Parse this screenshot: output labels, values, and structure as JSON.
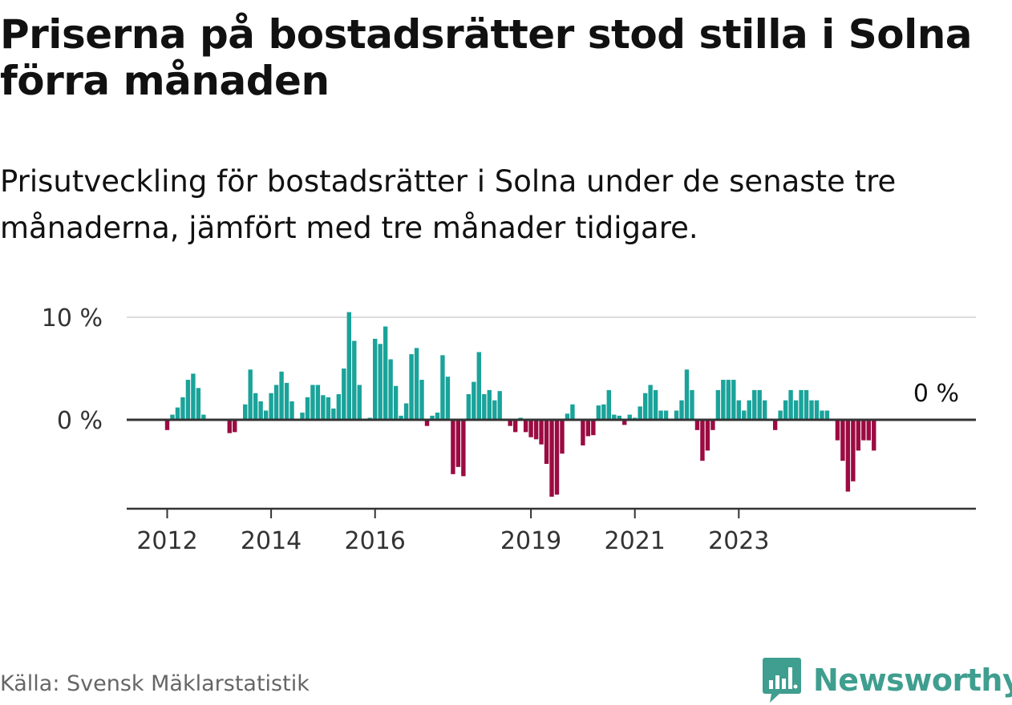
{
  "title": "Priserna på bostadsrätter stod stilla i Solna förra månaden",
  "subtitle": "Prisutveckling för bostadsrätter i Solna under de senaste tre månaderna, jämfört med tre månader tidigare.",
  "source": "Källa: Svensk Mäklarstatistik",
  "brand": {
    "name": "Newsworthy",
    "logo_icon": "bar-chart-speech-bubble-icon",
    "color": "#3f9e8f"
  },
  "colors": {
    "positive": "#1aa39a",
    "negative": "#9b0b42",
    "gridline": "#dddddd",
    "axis": "#333333"
  },
  "chart_data": {
    "type": "bar",
    "title": "",
    "xlabel": "",
    "ylabel": "",
    "ylim": [
      -8.5,
      10
    ],
    "y_ticks": [
      {
        "value": 0,
        "label": "0 %"
      },
      {
        "value": 10,
        "label": "10 %"
      }
    ],
    "x_ticks": [
      {
        "index": 0,
        "label": "2012"
      },
      {
        "index": 20,
        "label": "2014"
      },
      {
        "index": 40,
        "label": "2016"
      },
      {
        "index": 70,
        "label": "2019"
      },
      {
        "index": 90,
        "label": "2021"
      },
      {
        "index": 110,
        "label": "2023"
      }
    ],
    "last_value_label": "0 %",
    "grid": true,
    "legend": "none",
    "values": [
      -1.0,
      0.5,
      1.2,
      2.2,
      3.9,
      4.5,
      3.1,
      0.5,
      0.0,
      0.0,
      0.0,
      0.0,
      -1.3,
      -1.2,
      0.0,
      1.5,
      4.9,
      2.6,
      1.8,
      0.9,
      2.6,
      3.4,
      4.7,
      3.6,
      1.8,
      0.0,
      0.7,
      2.2,
      3.4,
      3.4,
      2.4,
      2.2,
      1.1,
      2.5,
      5.0,
      10.5,
      7.7,
      3.4,
      0.0,
      0.2,
      7.9,
      7.4,
      9.1,
      5.9,
      3.3,
      0.4,
      1.6,
      6.4,
      7.0,
      3.9,
      -0.6,
      0.4,
      0.7,
      6.3,
      4.2,
      -5.3,
      -4.6,
      -5.5,
      2.5,
      3.7,
      6.6,
      2.5,
      2.9,
      1.9,
      2.8,
      0.0,
      -0.6,
      -1.2,
      0.2,
      -1.2,
      -1.7,
      -1.9,
      -2.4,
      -4.3,
      -7.5,
      -7.3,
      -3.3,
      0.6,
      1.5,
      0.0,
      -2.5,
      -1.6,
      -1.5,
      1.4,
      1.5,
      2.9,
      0.5,
      0.4,
      -0.5,
      0.5,
      0.2,
      1.3,
      2.6,
      3.4,
      2.9,
      0.9,
      0.9,
      0.0,
      0.9,
      1.9,
      4.9,
      2.9,
      -1.0,
      -4.0,
      -3.0,
      -1.0,
      2.9,
      3.9,
      3.9,
      3.9,
      1.9,
      0.9,
      1.9,
      2.9,
      2.9,
      1.9,
      0.0,
      -1.0,
      0.9,
      1.9,
      2.9,
      1.9,
      2.9,
      2.9,
      1.9,
      1.9,
      0.9,
      0.9,
      0.0,
      -2.0,
      -4.0,
      -7.0,
      -6.0,
      -3.0,
      -2.0,
      -2.0,
      -3.0,
      0.0
    ]
  }
}
